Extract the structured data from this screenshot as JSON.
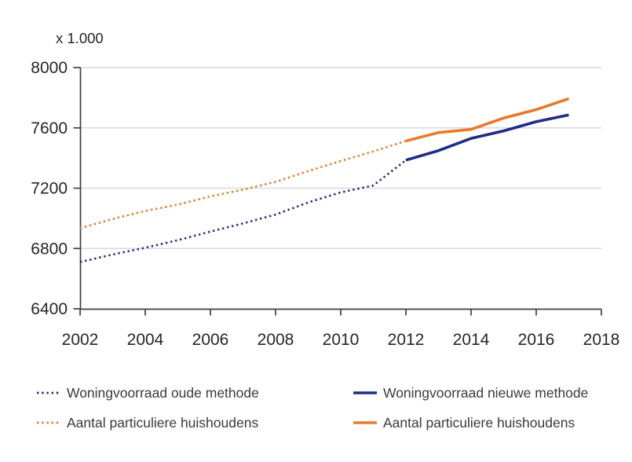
{
  "chart_data": {
    "type": "line",
    "title": "",
    "unit_note": "x 1.000",
    "xlabel": "",
    "ylabel": "",
    "xlim": [
      2002,
      2018
    ],
    "ylim": [
      6400,
      8000
    ],
    "x_ticks": [
      2002,
      2004,
      2006,
      2008,
      2010,
      2012,
      2014,
      2016,
      2018
    ],
    "y_ticks": [
      6400,
      6800,
      7200,
      7600,
      8000
    ],
    "y_gridlines": [
      6800,
      7200,
      7600,
      8000
    ],
    "grid": "horizontal-light",
    "legend_position": "bottom",
    "series": [
      {
        "name": "Woningvoorraad oude methode",
        "style": "dotted",
        "color": "#1e2d87",
        "x": [
          2002,
          2003,
          2004,
          2005,
          2006,
          2007,
          2008,
          2009,
          2010,
          2011,
          2012
        ],
        "values": [
          6710,
          6760,
          6805,
          6855,
          6912,
          6966,
          7025,
          7105,
          7172,
          7218,
          7386
        ]
      },
      {
        "name": "Aantal particuliere huishoudens",
        "style": "dotted",
        "color": "#e87a2c",
        "x": [
          2002,
          2003,
          2004,
          2005,
          2006,
          2007,
          2008,
          2009,
          2010,
          2011,
          2012
        ],
        "values": [
          6934,
          6996,
          7049,
          7091,
          7146,
          7190,
          7242,
          7313,
          7380,
          7444,
          7513
        ]
      },
      {
        "name": "Woningvoorraad nieuwe methode",
        "style": "solid",
        "color": "#1e2d87",
        "x": [
          2012,
          2013,
          2014,
          2015,
          2016,
          2017
        ],
        "values": [
          7386,
          7449,
          7530,
          7580,
          7641,
          7686
        ]
      },
      {
        "name": "Aantal particuliere huishoudens",
        "style": "solid",
        "color": "#e87a2c",
        "x": [
          2012,
          2013,
          2014,
          2015,
          2016,
          2017
        ],
        "values": [
          7513,
          7569,
          7590,
          7665,
          7721,
          7794
        ]
      }
    ]
  },
  "legend": {
    "items": [
      {
        "label": "Woningvoorraad oude methode",
        "style": "dotted",
        "color": "#1e2d87"
      },
      {
        "label": "Woningvoorraad nieuwe methode",
        "style": "solid",
        "color": "#1e2d87"
      },
      {
        "label": "Aantal particuliere huishoudens",
        "style": "dotted",
        "color": "#e87a2c"
      },
      {
        "label": "Aantal particuliere huishoudens",
        "style": "solid",
        "color": "#e87a2c"
      }
    ]
  },
  "colors": {
    "gridline": "#d9d9d9",
    "axis": "#3f3f3f",
    "tick_label": "#262626",
    "background": "#ffffff"
  }
}
